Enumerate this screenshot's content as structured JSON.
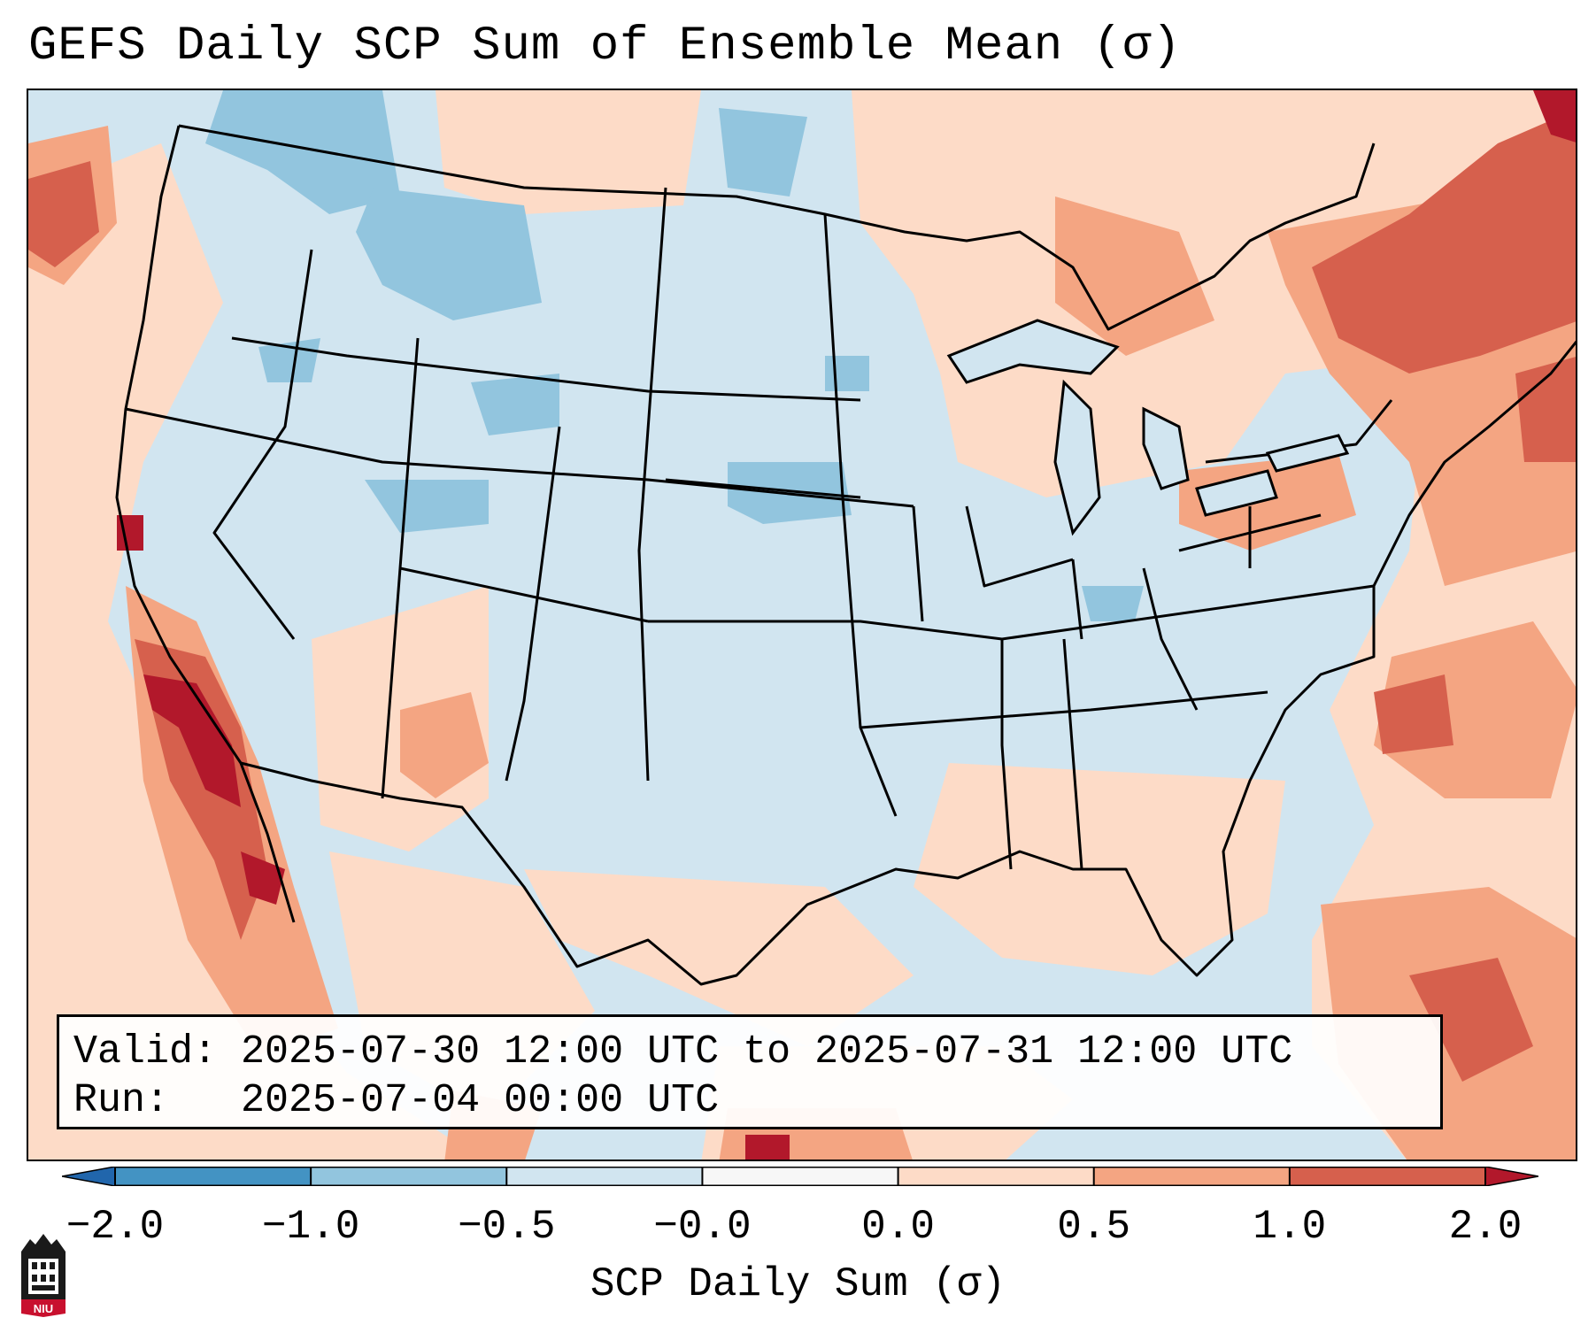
{
  "title": "GEFS Daily SCP Sum of Ensemble Mean (σ)",
  "info": {
    "valid_line": "Valid: 2025-07-30 12:00 UTC to 2025-07-31 12:00 UTC",
    "run_line": "Run:   2025-07-04 00:00 UTC"
  },
  "colorbar": {
    "label": "SCP Daily Sum (σ)",
    "ticks": [
      "−2.0",
      "−1.0",
      "−0.5",
      "−0.0",
      "0.0",
      "0.5",
      "1.0",
      "2.0"
    ],
    "bins": [
      {
        "range": "< -2.0",
        "color": "#2166ac"
      },
      {
        "range": "-2.0 to -1.0",
        "color": "#4393c3"
      },
      {
        "range": "-1.0 to -0.5",
        "color": "#92c5de"
      },
      {
        "range": "-0.5 to -0.0",
        "color": "#d1e5f0"
      },
      {
        "range": "-0.0 to 0.0",
        "color": "#f7f7f7"
      },
      {
        "range": "0.0 to 0.5",
        "color": "#fddbc7"
      },
      {
        "range": "0.5 to 1.0",
        "color": "#f4a582"
      },
      {
        "range": "1.0 to 2.0",
        "color": "#d6604d"
      },
      {
        "range": "> 2.0",
        "color": "#b2182b"
      }
    ]
  },
  "map": {
    "region": "Continental United States",
    "projection": "Lambert conformal",
    "background_value_color": "#d1e5f0"
  },
  "logo": {
    "text": "NIU",
    "icon": "niu-logo-icon"
  }
}
